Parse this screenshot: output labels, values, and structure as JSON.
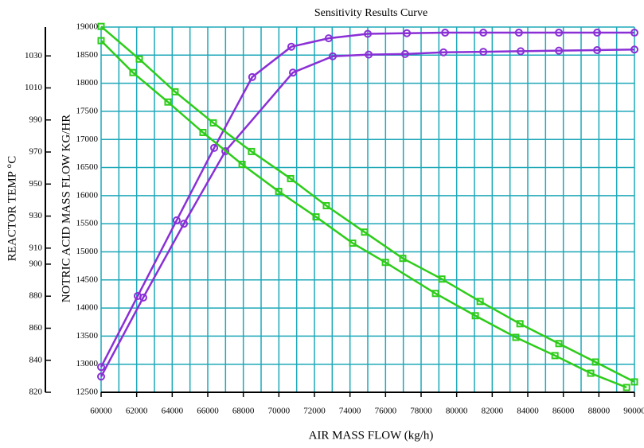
{
  "chart_data": {
    "type": "line",
    "title": "Sensitivity Results Curve",
    "x_label": "AIR MASS FLOW (kg/h)",
    "y_label": "REACTOR TEMP °C",
    "y2_label": "NOTRIC ACID MASS FLOW KG/HR",
    "xlim": [
      60000,
      90000
    ],
    "xticks": [
      60000,
      62000,
      64000,
      66000,
      68000,
      70000,
      72000,
      74000,
      76000,
      78000,
      80000,
      82000,
      84000,
      86000,
      88000,
      90000
    ],
    "ylim": [
      820,
      1048
    ],
    "yticks": [
      820,
      840,
      860,
      880,
      900,
      910,
      930,
      950,
      970,
      990,
      1010,
      1030
    ],
    "y2lim": [
      12500,
      19000
    ],
    "y2ticks": [
      12500,
      13000,
      13500,
      14000,
      14500,
      15000,
      15500,
      16000,
      16500,
      17000,
      17500,
      18000,
      18500,
      19000
    ],
    "grid": true,
    "series": [
      {
        "color": "#8a2fd6",
        "axis": "y2",
        "marker": "circle",
        "x": [
          60000,
          62060,
          64250,
          66360,
          68500,
          70700,
          72800,
          75000,
          77200,
          79350,
          81500,
          83500,
          85750,
          87900,
          90000
        ],
        "values": [
          12950,
          14214,
          15560,
          16850,
          18110,
          18650,
          18800,
          18880,
          18890,
          18900,
          18900,
          18900,
          18900,
          18900,
          18900
        ]
      },
      {
        "color": "#8a2fd6",
        "axis": "y2",
        "marker": "circle",
        "x": [
          60000,
          62370,
          64660,
          66990,
          70790,
          73030,
          75050,
          77100,
          79260,
          81500,
          83600,
          85750,
          87900,
          90000
        ],
        "values": [
          12780,
          14186,
          15500,
          16790,
          18190,
          18480,
          18510,
          18520,
          18550,
          18560,
          18570,
          18580,
          18590,
          18600
        ]
      },
      {
        "color": "#2ecc1a",
        "marker": "square",
        "x": [
          60000,
          62150,
          64160,
          66310,
          68460,
          70660,
          72670,
          74820,
          76970,
          79170,
          81320,
          83560,
          85750,
          87810,
          90000
        ],
        "values": [
          1048.4,
          1028.0,
          1007.6,
          988.2,
          970.3,
          953.4,
          936.5,
          920.0,
          903.6,
          890.7,
          876.7,
          862.8,
          850.4,
          838.9,
          826.5
        ]
      },
      {
        "color": "#2ecc1a",
        "marker": "square",
        "x": [
          60000,
          61790,
          63760,
          65730,
          67930,
          69990,
          72090,
          74150,
          75990,
          78810,
          81050,
          83330,
          85530,
          87540,
          89560
        ],
        "values": [
          1039.5,
          1019.6,
          1001.2,
          982.2,
          962.3,
          945.4,
          929.5,
          913.1,
          901.1,
          881.7,
          867.8,
          854.3,
          842.9,
          831.9,
          823.0
        ]
      }
    ]
  }
}
